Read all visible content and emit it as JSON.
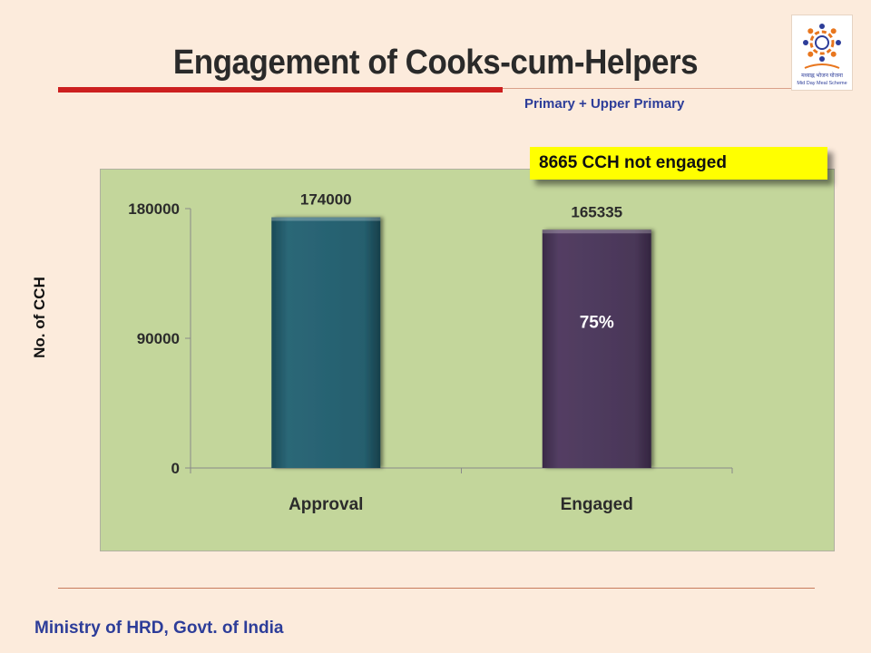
{
  "slide": {
    "title": "Engagement  of Cooks-cum-Helpers",
    "subtitle": "Primary + Upper Primary",
    "callout": "8665 CCH not engaged",
    "footer": "Ministry of HRD, Govt. of India",
    "logo_text": "मध्याह्न भोजन योजना",
    "logo_subtext": "Mid Day Meal Scheme"
  },
  "colors": {
    "chart_background": "#c3d69b",
    "approval_bar": "#255f6e",
    "engaged_bar": "#4a3758",
    "accent_red": "#cc1f1f",
    "footer_blue": "#2d3d99",
    "callout_yellow": "#ffff00"
  },
  "chart_data": {
    "type": "bar",
    "categories": [
      "Approval",
      "Engaged"
    ],
    "values": [
      174000,
      165335
    ],
    "data_labels": [
      "174000",
      "165335"
    ],
    "ylabel": "No. of CCH",
    "ylim": [
      0,
      180000
    ],
    "yticks": [
      0,
      90000,
      180000
    ],
    "ytick_labels": [
      "0",
      "90000",
      "180000"
    ],
    "bar_annotation": {
      "category": "Engaged",
      "text": "75%"
    },
    "grid": false
  }
}
